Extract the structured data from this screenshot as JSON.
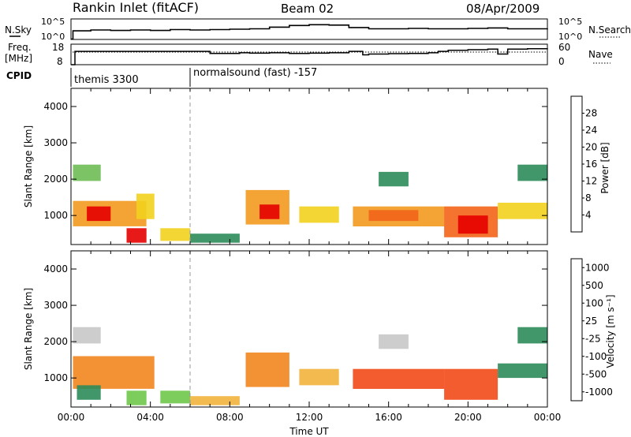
{
  "header": {
    "title": "Rankin Inlet (fitACF)",
    "beam": "Beam 02",
    "date": "08/Apr/2009"
  },
  "panel_labels": {
    "nsky": "N.Sky",
    "freq_line1": "Freq.",
    "freq_line2": "[MHz]",
    "cpid": "CPID",
    "nsearch": "N.Search",
    "nave": "Nave"
  },
  "cpid_segments": [
    {
      "label": "themis 3300",
      "start_hour": 0
    },
    {
      "label": "normalsound (fast) -157",
      "start_hour": 6
    }
  ],
  "colors": {
    "power": [
      "#0000ff",
      "#2d5fb4",
      "#2e8c5a",
      "#6ebd55",
      "#f2d21e",
      "#f29a1e",
      "#f26418",
      "#e60000"
    ],
    "velocity": [
      "#e60000",
      "#f24a18",
      "#f2861e",
      "#f2b43c",
      "#c8c8c8",
      "#6ec84a",
      "#2e8c5a",
      "#2d5fb4",
      "#0a2aa0"
    ]
  },
  "chart_data": [
    {
      "type": "line",
      "name": "nsky-nsearch",
      "left_ticks": [
        "10^5",
        "10^0"
      ],
      "right_ticks": [
        "10^5",
        "10^0"
      ],
      "x": [
        0,
        0.1,
        1,
        2,
        3,
        4,
        5,
        6,
        7,
        8,
        9,
        10,
        11,
        12,
        13,
        14,
        15,
        16,
        17,
        18,
        19,
        20,
        21,
        22,
        23,
        24
      ],
      "series": [
        {
          "values": [
            0.1,
            2.1,
            2.3,
            2.2,
            2.3,
            2.2,
            2.4,
            2.3,
            2.4,
            2.5,
            2.6,
            3.0,
            3.4,
            3.6,
            3.5,
            2.9,
            2.6,
            2.6,
            2.7,
            2.6,
            2.6,
            2.7,
            2.8,
            2.6,
            2.6,
            2.7
          ]
        }
      ]
    },
    {
      "type": "line",
      "name": "freq-nave",
      "left_ticks": [
        "18",
        "8"
      ],
      "right_ticks": [
        "60",
        "0"
      ],
      "x": [
        0,
        0.2,
        6,
        6.5,
        7,
        8.5,
        9,
        10,
        11,
        12,
        13,
        14,
        14.7,
        15,
        16,
        17,
        18,
        18.5,
        19,
        20,
        21,
        21.5,
        22,
        23,
        24
      ],
      "series": [
        {
          "values": [
            8,
            14.5,
            14.5,
            14.5,
            13.5,
            13.8,
            13.6,
            13.8,
            13.5,
            13.6,
            13.8,
            14.5,
            12.8,
            13.2,
            13.4,
            13.5,
            13.8,
            14.5,
            15,
            15.3,
            15.6,
            13.2,
            15.6,
            15.8,
            16
          ]
        }
      ]
    },
    {
      "type": "heatmap",
      "name": "power",
      "xlabel": "",
      "ylabel": "Slant Range [km]",
      "xlim": [
        0,
        24
      ],
      "ylim": [
        200,
        4500
      ],
      "y_ticks": [
        1000,
        2000,
        3000,
        4000
      ],
      "colorbar_label": "Power [dB]",
      "colorbar_ticks": [
        4,
        8,
        12,
        16,
        20,
        24,
        28
      ],
      "regions": [
        {
          "x0": 0.1,
          "x1": 1.5,
          "y0": 1950,
          "y1": 2400,
          "level": 3
        },
        {
          "x0": 0.1,
          "x1": 3.8,
          "y0": 700,
          "y1": 1400,
          "level": 5
        },
        {
          "x0": 0.8,
          "x1": 2.0,
          "y0": 850,
          "y1": 1250,
          "level": 7
        },
        {
          "x0": 2.8,
          "x1": 3.8,
          "y0": 250,
          "y1": 650,
          "level": 7
        },
        {
          "x0": 3.3,
          "x1": 4.2,
          "y0": 900,
          "y1": 1600,
          "level": 4
        },
        {
          "x0": 4.5,
          "x1": 6.0,
          "y0": 300,
          "y1": 650,
          "level": 4
        },
        {
          "x0": 6.0,
          "x1": 8.5,
          "y0": 250,
          "y1": 500,
          "level": 2
        },
        {
          "x0": 8.8,
          "x1": 11.0,
          "y0": 750,
          "y1": 1700,
          "level": 5
        },
        {
          "x0": 9.5,
          "x1": 10.5,
          "y0": 900,
          "y1": 1300,
          "level": 7
        },
        {
          "x0": 11.5,
          "x1": 13.5,
          "y0": 800,
          "y1": 1250,
          "level": 4
        },
        {
          "x0": 14.2,
          "x1": 18.8,
          "y0": 700,
          "y1": 1250,
          "level": 5
        },
        {
          "x0": 15.0,
          "x1": 17.5,
          "y0": 850,
          "y1": 1150,
          "level": 6
        },
        {
          "x0": 18.8,
          "x1": 21.5,
          "y0": 400,
          "y1": 1250,
          "level": 6
        },
        {
          "x0": 19.5,
          "x1": 21.0,
          "y0": 500,
          "y1": 1000,
          "level": 7
        },
        {
          "x0": 21.5,
          "x1": 24.0,
          "y0": 900,
          "y1": 1350,
          "level": 4
        },
        {
          "x0": 15.5,
          "x1": 17.0,
          "y0": 1800,
          "y1": 2200,
          "level": 2
        },
        {
          "x0": 22.5,
          "x1": 24.0,
          "y0": 1950,
          "y1": 2400,
          "level": 2
        }
      ]
    },
    {
      "type": "heatmap",
      "name": "velocity",
      "xlabel": "Time UT",
      "ylabel": "Slant Range [km]",
      "xlim": [
        0,
        24
      ],
      "ylim": [
        200,
        4500
      ],
      "x_ticks": [
        "00:00",
        "04:00",
        "08:00",
        "12:00",
        "16:00",
        "20:00",
        "00:00"
      ],
      "y_ticks": [
        1000,
        2000,
        3000,
        4000
      ],
      "colorbar_label": "Velocity [m s⁻¹]",
      "colorbar_ticks": [
        1000,
        500,
        100,
        25,
        -25,
        -100,
        -500,
        -1000
      ],
      "regions": [
        {
          "x0": 0.1,
          "x1": 1.5,
          "y0": 1950,
          "y1": 2400,
          "level": 4
        },
        {
          "x0": 0.1,
          "x1": 4.2,
          "y0": 700,
          "y1": 1600,
          "level": 2
        },
        {
          "x0": 0.3,
          "x1": 1.5,
          "y0": 400,
          "y1": 800,
          "level": 6
        },
        {
          "x0": 2.8,
          "x1": 3.8,
          "y0": 250,
          "y1": 650,
          "level": 5
        },
        {
          "x0": 4.5,
          "x1": 6.0,
          "y0": 300,
          "y1": 650,
          "level": 5
        },
        {
          "x0": 6.0,
          "x1": 8.5,
          "y0": 250,
          "y1": 500,
          "level": 3
        },
        {
          "x0": 8.8,
          "x1": 11.0,
          "y0": 750,
          "y1": 1700,
          "level": 2
        },
        {
          "x0": 11.5,
          "x1": 13.5,
          "y0": 800,
          "y1": 1250,
          "level": 3
        },
        {
          "x0": 14.2,
          "x1": 18.8,
          "y0": 700,
          "y1": 1250,
          "level": 1
        },
        {
          "x0": 15.5,
          "x1": 17.0,
          "y0": 1800,
          "y1": 2200,
          "level": 4
        },
        {
          "x0": 18.8,
          "x1": 21.5,
          "y0": 400,
          "y1": 1250,
          "level": 1
        },
        {
          "x0": 21.5,
          "x1": 24.0,
          "y0": 1000,
          "y1": 1400,
          "level": 6
        },
        {
          "x0": 22.5,
          "x1": 24.0,
          "y0": 1950,
          "y1": 2400,
          "level": 6
        }
      ]
    }
  ]
}
